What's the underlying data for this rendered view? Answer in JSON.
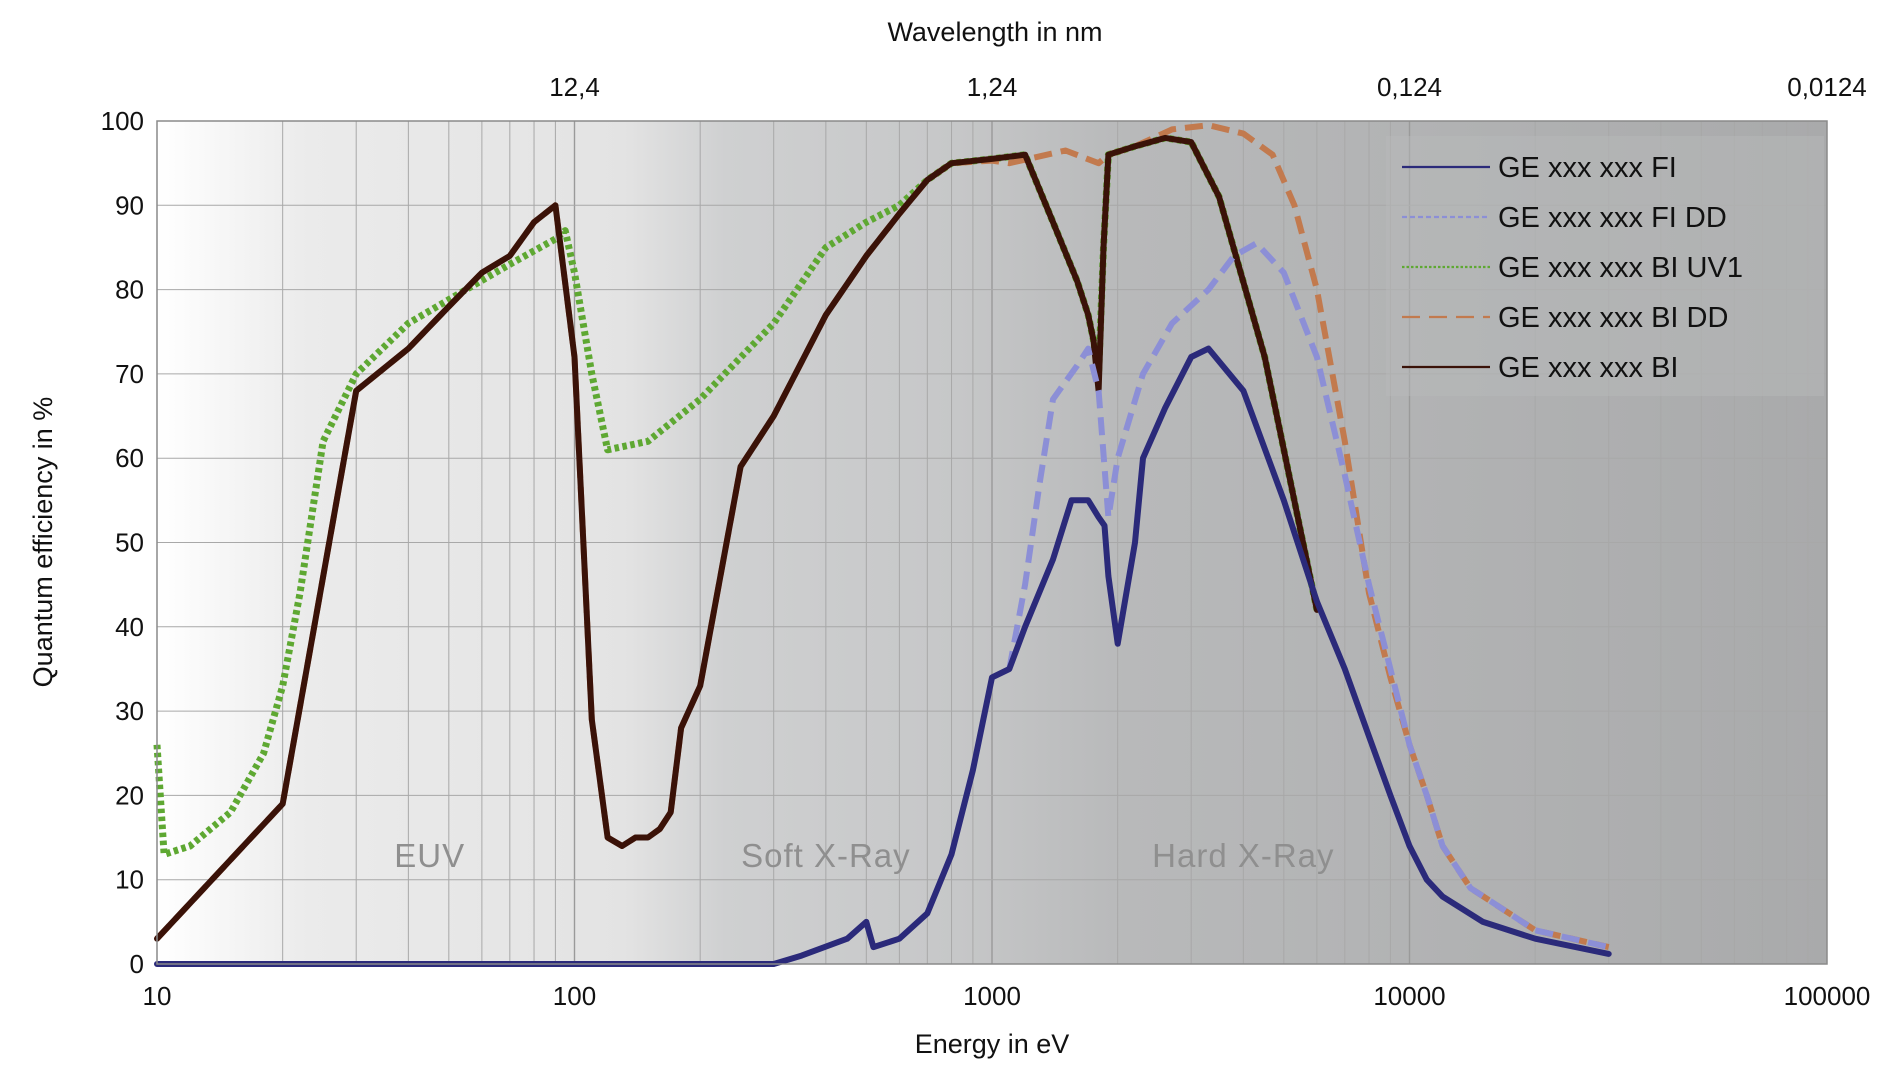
{
  "chart_data": {
    "type": "line",
    "xlabel": "Energy in eV",
    "ylabel": "Quantum efficiency  in %",
    "top_axis_label": "Wavelength in nm",
    "x_scale": "log",
    "xlim": [
      10,
      100000
    ],
    "ylim": [
      0,
      100
    ],
    "x_ticks": [
      10,
      100,
      1000,
      10000,
      100000
    ],
    "x_tick_labels": [
      "10",
      "100",
      "1000",
      "10000",
      "100000"
    ],
    "y_ticks": [
      0,
      10,
      20,
      30,
      40,
      50,
      60,
      70,
      80,
      90,
      100
    ],
    "y_tick_labels": [
      "0",
      "10",
      "20",
      "30",
      "40",
      "50",
      "60",
      "70",
      "80",
      "90",
      "100"
    ],
    "top_ticks_energy": [
      100,
      1000,
      10000,
      100000
    ],
    "top_tick_labels": [
      "12,4",
      "1,24",
      "0,124",
      "0,0124"
    ],
    "grid": true,
    "legend_position": "top-right",
    "regions": [
      {
        "label": "EUV",
        "x": 45
      },
      {
        "label": "Soft X-Ray",
        "x": 400
      },
      {
        "label": "Hard X-Ray",
        "x": 4000
      }
    ],
    "series": [
      {
        "name": "GE xxx xxx FI",
        "color": "#2b2a7a",
        "style": "solid",
        "points": [
          [
            10,
            0
          ],
          [
            100,
            0
          ],
          [
            300,
            0
          ],
          [
            350,
            1
          ],
          [
            450,
            3
          ],
          [
            500,
            5
          ],
          [
            520,
            2
          ],
          [
            600,
            3
          ],
          [
            700,
            6
          ],
          [
            800,
            13
          ],
          [
            900,
            23
          ],
          [
            1000,
            34
          ],
          [
            1100,
            35
          ],
          [
            1200,
            40
          ],
          [
            1400,
            48
          ],
          [
            1550,
            55
          ],
          [
            1700,
            55
          ],
          [
            1800,
            53
          ],
          [
            1860,
            52
          ],
          [
            1900,
            46
          ],
          [
            2000,
            38
          ],
          [
            2200,
            50
          ],
          [
            2300,
            60
          ],
          [
            2600,
            66
          ],
          [
            3000,
            72
          ],
          [
            3300,
            73
          ],
          [
            4000,
            68
          ],
          [
            5000,
            55
          ],
          [
            6000,
            43
          ],
          [
            7000,
            35
          ],
          [
            8000,
            27
          ],
          [
            9000,
            20
          ],
          [
            10000,
            14
          ],
          [
            11000,
            10
          ],
          [
            12000,
            8
          ],
          [
            15000,
            5
          ],
          [
            20000,
            3
          ],
          [
            25000,
            2
          ],
          [
            30000,
            1.2
          ]
        ]
      },
      {
        "name": "GE xxx xxx FI DD",
        "color": "#8c8fd6",
        "style": "dashed",
        "points": [
          [
            1100,
            35
          ],
          [
            1200,
            45
          ],
          [
            1300,
            57
          ],
          [
            1400,
            67
          ],
          [
            1600,
            71
          ],
          [
            1700,
            73
          ],
          [
            1800,
            68
          ],
          [
            1900,
            53
          ],
          [
            2000,
            60
          ],
          [
            2300,
            70
          ],
          [
            2700,
            76
          ],
          [
            3300,
            80
          ],
          [
            3800,
            84
          ],
          [
            4300,
            85.5
          ],
          [
            5000,
            82
          ],
          [
            6000,
            72
          ],
          [
            7000,
            58
          ],
          [
            8000,
            45
          ],
          [
            9000,
            35
          ],
          [
            10000,
            26
          ],
          [
            11000,
            20
          ],
          [
            12000,
            14
          ],
          [
            14000,
            9
          ],
          [
            20000,
            4
          ],
          [
            30000,
            2
          ]
        ]
      },
      {
        "name": "GE xxx xxx BI UV1",
        "color": "#5ea832",
        "style": "dotted",
        "points": [
          [
            10,
            26
          ],
          [
            10.4,
            13
          ],
          [
            12,
            14
          ],
          [
            15,
            18
          ],
          [
            18,
            25
          ],
          [
            20,
            33
          ],
          [
            22,
            44
          ],
          [
            25,
            62
          ],
          [
            30,
            70
          ],
          [
            40,
            76
          ],
          [
            55,
            80
          ],
          [
            70,
            83
          ],
          [
            90,
            86
          ],
          [
            95,
            87
          ],
          [
            100,
            82
          ],
          [
            110,
            70
          ],
          [
            120,
            61
          ],
          [
            150,
            62
          ],
          [
            200,
            67
          ],
          [
            300,
            76
          ],
          [
            400,
            85
          ],
          [
            500,
            88
          ],
          [
            600,
            90
          ],
          [
            700,
            93
          ],
          [
            800,
            95
          ],
          [
            1000,
            95.5
          ],
          [
            1200,
            96
          ],
          [
            1400,
            88
          ],
          [
            1600,
            81
          ],
          [
            1700,
            77
          ],
          [
            1750,
            74
          ],
          [
            1800,
            70
          ],
          [
            1850,
            85
          ],
          [
            1900,
            96
          ],
          [
            2200,
            97
          ],
          [
            2600,
            98
          ],
          [
            3000,
            97.5
          ],
          [
            3500,
            91
          ],
          [
            4500,
            72
          ],
          [
            6000,
            42
          ]
        ]
      },
      {
        "name": "GE xxx xxx BI DD",
        "color": "#c27a4e",
        "style": "dashed",
        "points": [
          [
            10,
            3
          ],
          [
            20,
            19
          ],
          [
            30,
            68
          ],
          [
            40,
            73
          ],
          [
            50,
            78
          ],
          [
            60,
            82
          ],
          [
            70,
            84
          ],
          [
            80,
            88
          ],
          [
            90,
            90
          ],
          [
            100,
            72
          ],
          [
            110,
            29
          ],
          [
            120,
            15
          ],
          [
            130,
            14
          ],
          [
            140,
            15
          ],
          [
            150,
            15
          ],
          [
            160,
            16
          ],
          [
            170,
            18
          ],
          [
            180,
            28
          ],
          [
            200,
            33
          ],
          [
            250,
            59
          ],
          [
            300,
            65
          ],
          [
            400,
            77
          ],
          [
            500,
            84
          ],
          [
            600,
            89
          ],
          [
            700,
            93
          ],
          [
            800,
            95
          ],
          [
            1000,
            95.3
          ],
          [
            1100,
            95
          ],
          [
            1500,
            96.5
          ],
          [
            1800,
            95
          ],
          [
            1900,
            96
          ],
          [
            2200,
            97
          ],
          [
            2700,
            99
          ],
          [
            3300,
            99.5
          ],
          [
            4000,
            98.5
          ],
          [
            4700,
            96
          ],
          [
            5300,
            90
          ],
          [
            6000,
            80
          ],
          [
            7000,
            62
          ],
          [
            8000,
            44
          ],
          [
            9000,
            34
          ],
          [
            10000,
            26
          ],
          [
            11000,
            20
          ],
          [
            12000,
            14
          ],
          [
            14000,
            9
          ],
          [
            20000,
            4
          ],
          [
            30000,
            2
          ]
        ]
      },
      {
        "name": "GE xxx xxx BI",
        "color": "#3a1208",
        "style": "solid",
        "points": [
          [
            10,
            3
          ],
          [
            20,
            19
          ],
          [
            30,
            68
          ],
          [
            40,
            73
          ],
          [
            50,
            78
          ],
          [
            60,
            82
          ],
          [
            70,
            84
          ],
          [
            80,
            88
          ],
          [
            90,
            90
          ],
          [
            100,
            72
          ],
          [
            110,
            29
          ],
          [
            120,
            15
          ],
          [
            130,
            14
          ],
          [
            140,
            15
          ],
          [
            150,
            15
          ],
          [
            160,
            16
          ],
          [
            170,
            18
          ],
          [
            180,
            28
          ],
          [
            200,
            33
          ],
          [
            250,
            59
          ],
          [
            300,
            65
          ],
          [
            400,
            77
          ],
          [
            500,
            84
          ],
          [
            600,
            89
          ],
          [
            700,
            93
          ],
          [
            800,
            95
          ],
          [
            1000,
            95.5
          ],
          [
            1200,
            96
          ],
          [
            1400,
            88
          ],
          [
            1600,
            81
          ],
          [
            1700,
            77
          ],
          [
            1750,
            74
          ],
          [
            1800,
            68
          ],
          [
            1850,
            85
          ],
          [
            1900,
            96
          ],
          [
            2200,
            97
          ],
          [
            2600,
            98
          ],
          [
            3000,
            97.5
          ],
          [
            3500,
            91
          ],
          [
            4500,
            72
          ],
          [
            6000,
            42
          ]
        ]
      }
    ]
  }
}
